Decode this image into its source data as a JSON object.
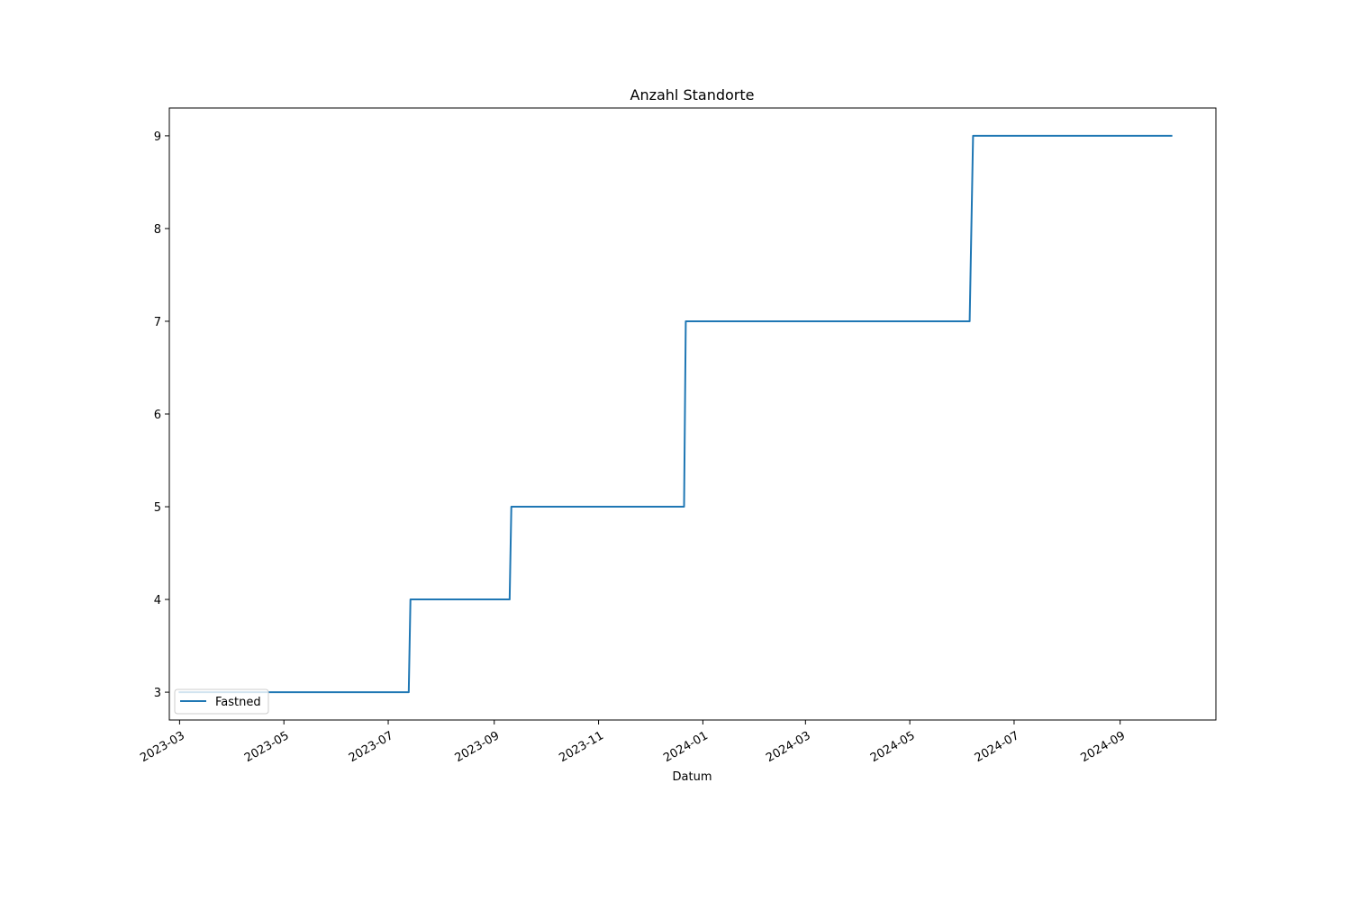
{
  "chart_data": {
    "type": "line",
    "title": "Anzahl Standorte",
    "xlabel": "Datum",
    "ylabel": "",
    "x_scale": "date",
    "xlim": [
      "2023-02-23",
      "2024-10-27"
    ],
    "ylim": [
      2.7,
      9.3
    ],
    "x_ticks": [
      "2023-03-01",
      "2023-05-01",
      "2023-07-01",
      "2023-09-01",
      "2023-11-01",
      "2024-01-01",
      "2024-03-01",
      "2024-05-01",
      "2024-07-01",
      "2024-09-01"
    ],
    "x_tick_labels": [
      "2023-03",
      "2023-05",
      "2023-07",
      "2023-09",
      "2023-11",
      "2024-01",
      "2024-03",
      "2024-05",
      "2024-07",
      "2024-09"
    ],
    "y_ticks": [
      3,
      4,
      5,
      6,
      7,
      8,
      9
    ],
    "y_tick_labels": [
      "3",
      "4",
      "5",
      "6",
      "7",
      "8",
      "9"
    ],
    "grid": false,
    "legend_position": "lower-left",
    "series": [
      {
        "name": "Fastned",
        "color": "#1f77b4",
        "points": [
          {
            "x": "2023-03-01",
            "y": 3
          },
          {
            "x": "2023-07-13",
            "y": 3
          },
          {
            "x": "2023-07-14",
            "y": 4
          },
          {
            "x": "2023-09-10",
            "y": 4
          },
          {
            "x": "2023-09-11",
            "y": 5
          },
          {
            "x": "2023-12-21",
            "y": 5
          },
          {
            "x": "2023-12-22",
            "y": 7
          },
          {
            "x": "2024-06-05",
            "y": 7
          },
          {
            "x": "2024-06-07",
            "y": 9
          },
          {
            "x": "2024-10-01",
            "y": 9
          }
        ]
      }
    ]
  }
}
